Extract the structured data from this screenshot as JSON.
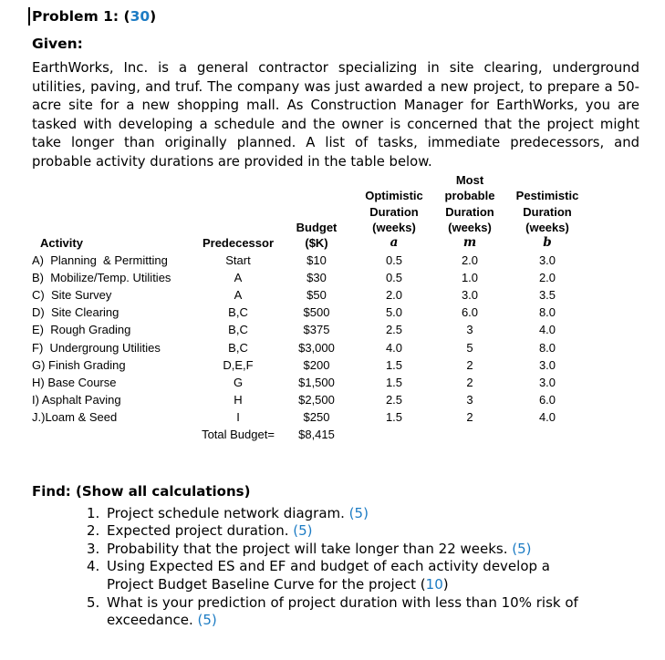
{
  "colors": {
    "accent_blue": "#1D7CC4",
    "text": "#000000"
  },
  "title": {
    "prefix": "Problem 1: (",
    "points": "30",
    "suffix": ")"
  },
  "given": {
    "heading": "Given:",
    "paragraph": "EarthWorks, Inc. is a general contractor specializing in site clearing, underground utilities, paving, and truf.  The company was just awarded a new project, to prepare a 50-acre site for a new shopping mall.  As Construction Manager for EarthWorks, you are tasked with developing a schedule and the owner is concerned that the project might take longer than originally planned. A list of tasks, immediate predecessors, and probable activity durations are provided in the table below."
  },
  "table": {
    "headers": {
      "activity": "Activity",
      "predecessor": "Predecessor",
      "budget": {
        "line1": "Budget",
        "line2": "($K)"
      },
      "optimistic": {
        "line1": "Optimistic",
        "line2": "Duration",
        "line3": "(weeks)",
        "symbol": "a"
      },
      "most_probable": {
        "line1": "Most",
        "line2": "probable",
        "line3": "Duration",
        "line4": "(weeks)",
        "symbol": "m"
      },
      "pessimistic": {
        "line1": "Pestimistic",
        "line2": "Duration",
        "line3": "(weeks)",
        "symbol": "b"
      }
    },
    "rows": [
      {
        "activity": "A)  Planning  & Permitting",
        "predecessor": "Start",
        "budget": "$10",
        "a": "0.5",
        "m": "2.0",
        "b": "3.0"
      },
      {
        "activity": "B)  Mobilize/Temp. Utilities",
        "predecessor": "A",
        "budget": "$30",
        "a": "0.5",
        "m": "1.0",
        "b": "2.0"
      },
      {
        "activity": "C)  Site Survey",
        "predecessor": "A",
        "budget": "$50",
        "a": "2.0",
        "m": "3.0",
        "b": "3.5"
      },
      {
        "activity": "D)  Site Clearing",
        "predecessor": "B,C",
        "budget": "$500",
        "a": "5.0",
        "m": "6.0",
        "b": "8.0"
      },
      {
        "activity": "E)  Rough Grading",
        "predecessor": "B,C",
        "budget": "$375",
        "a": "2.5",
        "m": "3",
        "b": "4.0"
      },
      {
        "activity": "F)  Undergroung Utilities",
        "predecessor": "B,C",
        "budget": "$3,000",
        "a": "4.0",
        "m": "5",
        "b": "8.0"
      },
      {
        "activity": "G) Finish Grading",
        "predecessor": "D,E,F",
        "budget": "$200",
        "a": "1.5",
        "m": "2",
        "b": "3.0"
      },
      {
        "activity": "H) Base Course",
        "predecessor": "G",
        "budget": "$1,500",
        "a": "1.5",
        "m": "2",
        "b": "3.0"
      },
      {
        "activity": "I) Asphalt Paving",
        "predecessor": "H",
        "budget": "$2,500",
        "a": "2.5",
        "m": "3",
        "b": "6.0"
      },
      {
        "activity": "J.)Loam & Seed",
        "predecessor": "I",
        "budget": "$250",
        "a": "1.5",
        "m": "2",
        "b": "4.0"
      }
    ],
    "total_label": "Total Budget=",
    "total_value": "$8,415"
  },
  "find": {
    "heading": "Find: (Show all calculations)",
    "lines": [
      {
        "num": "1.",
        "text": "Project schedule network diagram. ",
        "points": "(5)",
        "suffix": ""
      },
      {
        "num": "2.",
        "text": "Expected project duration. ",
        "points": "(5)",
        "suffix": ""
      },
      {
        "num": "3.",
        "text": "Probability that the project will take longer than 22 weeks. ",
        "points": "(5)",
        "suffix": ""
      },
      {
        "num": "4.",
        "text": "Using Expected ES and EF and budget of each activity develop a",
        "points": "",
        "suffix": ""
      },
      {
        "num": "",
        "text": "Project Budget Baseline Curve for the project (",
        "points": "10",
        "suffix": ")"
      },
      {
        "num": "5.",
        "text": "What is your prediction of project duration with less than 10% risk of",
        "points": "",
        "suffix": ""
      },
      {
        "num": "",
        "text": "exceedance. ",
        "points": "(5)",
        "suffix": ""
      }
    ]
  }
}
